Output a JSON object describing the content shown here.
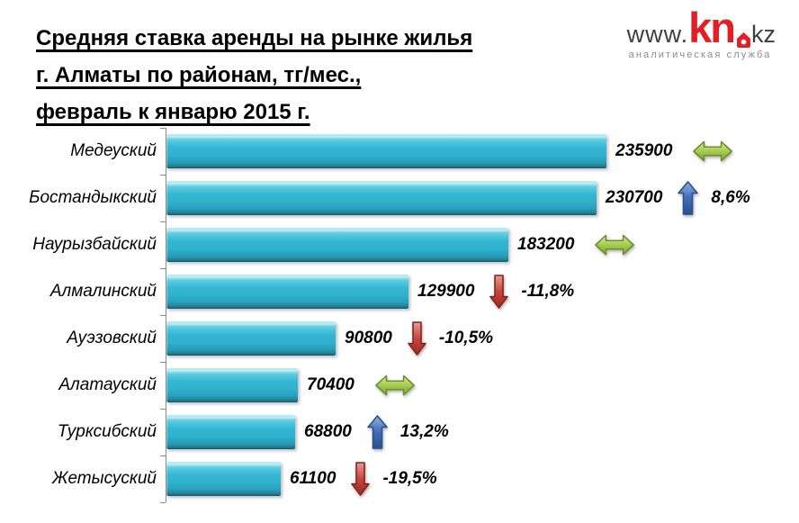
{
  "title": {
    "line1": "Средняя ставка аренды на рынке жилья",
    "line2": "г. Алматы по районам, тг/мес.,",
    "line3": "февраль к январю 2015 г."
  },
  "logo": {
    "www": "www.",
    "kn": "kn",
    "kz": "kz",
    "subtitle": "аналитическая служба",
    "brand_color": "#e31e24",
    "text_color": "#3f3f3e"
  },
  "chart_data": {
    "type": "bar",
    "orientation": "horizontal",
    "title": "Средняя ставка аренды на рынке жилья г. Алматы по районам, тг/мес., февраль к январю 2015 г.",
    "unit": "тг/мес.",
    "categories": [
      "Медеуский",
      "Бостандыкский",
      "Наурызбайский",
      "Алмалинский",
      "Ауэзовский",
      "Алатауский",
      "Турксибский",
      "Жетысуский"
    ],
    "values": [
      235900,
      230700,
      183200,
      129900,
      90800,
      70400,
      68800,
      61100
    ],
    "changes": [
      "",
      "8,6%",
      "",
      "-11,8%",
      "-10,5%",
      "",
      "13,2%",
      "-19,5%"
    ],
    "trends": [
      "neutral",
      "up",
      "neutral",
      "down",
      "down",
      "neutral",
      "up",
      "down"
    ],
    "xlim": [
      0,
      235900
    ],
    "grid": false,
    "legend": false,
    "bar_color": "#2fb0cd",
    "axis_color": "#8c8c8c",
    "trend_colors": {
      "up": "#3a6ab3",
      "down": "#c0423a",
      "neutral": "#a9cf54"
    },
    "rows": [
      {
        "label": "Медеуский",
        "value": 235900,
        "trend": "neutral",
        "change": ""
      },
      {
        "label": "Бостандыкский",
        "value": 230700,
        "trend": "up",
        "change": "8,6%"
      },
      {
        "label": "Наурызбайский",
        "value": 183200,
        "trend": "neutral",
        "change": ""
      },
      {
        "label": "Алмалинский",
        "value": 129900,
        "trend": "down",
        "change": "-11,8%"
      },
      {
        "label": "Ауэзовский",
        "value": 90800,
        "trend": "down",
        "change": "-10,5%"
      },
      {
        "label": "Алатауский",
        "value": 70400,
        "trend": "neutral",
        "change": ""
      },
      {
        "label": "Турксибский",
        "value": 68800,
        "trend": "up",
        "change": "13,2%"
      },
      {
        "label": "Жетысуский",
        "value": 61100,
        "trend": "down",
        "change": "-19,5%"
      }
    ]
  }
}
